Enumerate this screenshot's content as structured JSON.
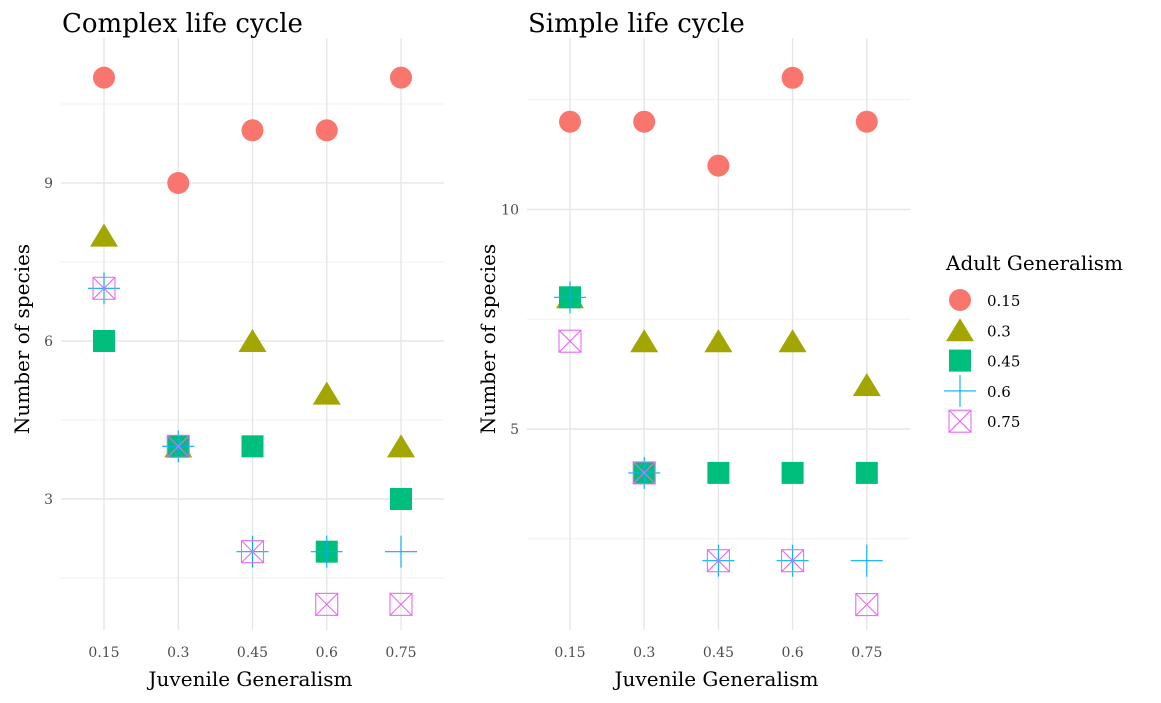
{
  "figure": {
    "legend": {
      "title": "Adult Generalism",
      "entries": [
        "0.15",
        "0.3",
        "0.45",
        "0.6",
        "0.75"
      ]
    }
  },
  "series_styles": [
    {
      "name": "0.15",
      "shape": "circle",
      "color": "#F8766D"
    },
    {
      "name": "0.3",
      "shape": "triangle",
      "color": "#A3A500"
    },
    {
      "name": "0.45",
      "shape": "square",
      "color": "#00BF7D"
    },
    {
      "name": "0.6",
      "shape": "plus",
      "color": "#00B0F6"
    },
    {
      "name": "0.75",
      "shape": "boxed-x",
      "color": "#E76BF3"
    }
  ],
  "chart_data": [
    {
      "type": "scatter",
      "title": "Complex life cycle",
      "xlabel": "Juvenile Generalism",
      "ylabel": "Number of species",
      "categories": [
        "0.15",
        "0.3",
        "0.45",
        "0.6",
        "0.75"
      ],
      "yticks": [
        3,
        6,
        9
      ],
      "ylim": [
        0.9,
        11.5
      ],
      "grid": true,
      "series": [
        {
          "name": "0.15",
          "values": [
            11,
            9,
            10,
            10,
            11
          ]
        },
        {
          "name": "0.3",
          "values": [
            8,
            4,
            6,
            5,
            4
          ]
        },
        {
          "name": "0.45",
          "values": [
            6,
            4,
            4,
            2,
            3
          ]
        },
        {
          "name": "0.6",
          "values": [
            7,
            4,
            2,
            2,
            2
          ]
        },
        {
          "name": "0.75",
          "values": [
            7,
            4,
            2,
            1,
            1
          ]
        }
      ]
    },
    {
      "type": "scatter",
      "title": "Simple life cycle",
      "xlabel": "Juvenile Generalism",
      "ylabel": "Number of species",
      "categories": [
        "0.15",
        "0.3",
        "0.45",
        "0.6",
        "0.75"
      ],
      "yticks": [
        5,
        10
      ],
      "ylim": [
        0.9,
        13.5
      ],
      "grid": true,
      "series": [
        {
          "name": "0.15",
          "values": [
            12,
            12,
            11,
            13,
            12
          ]
        },
        {
          "name": "0.3",
          "values": [
            8,
            7,
            7,
            7,
            6
          ]
        },
        {
          "name": "0.45",
          "values": [
            8,
            4,
            4,
            4,
            4
          ]
        },
        {
          "name": "0.6",
          "values": [
            8,
            4,
            2,
            2,
            2
          ]
        },
        {
          "name": "0.75",
          "values": [
            7,
            4,
            2,
            2,
            1
          ]
        }
      ]
    }
  ]
}
